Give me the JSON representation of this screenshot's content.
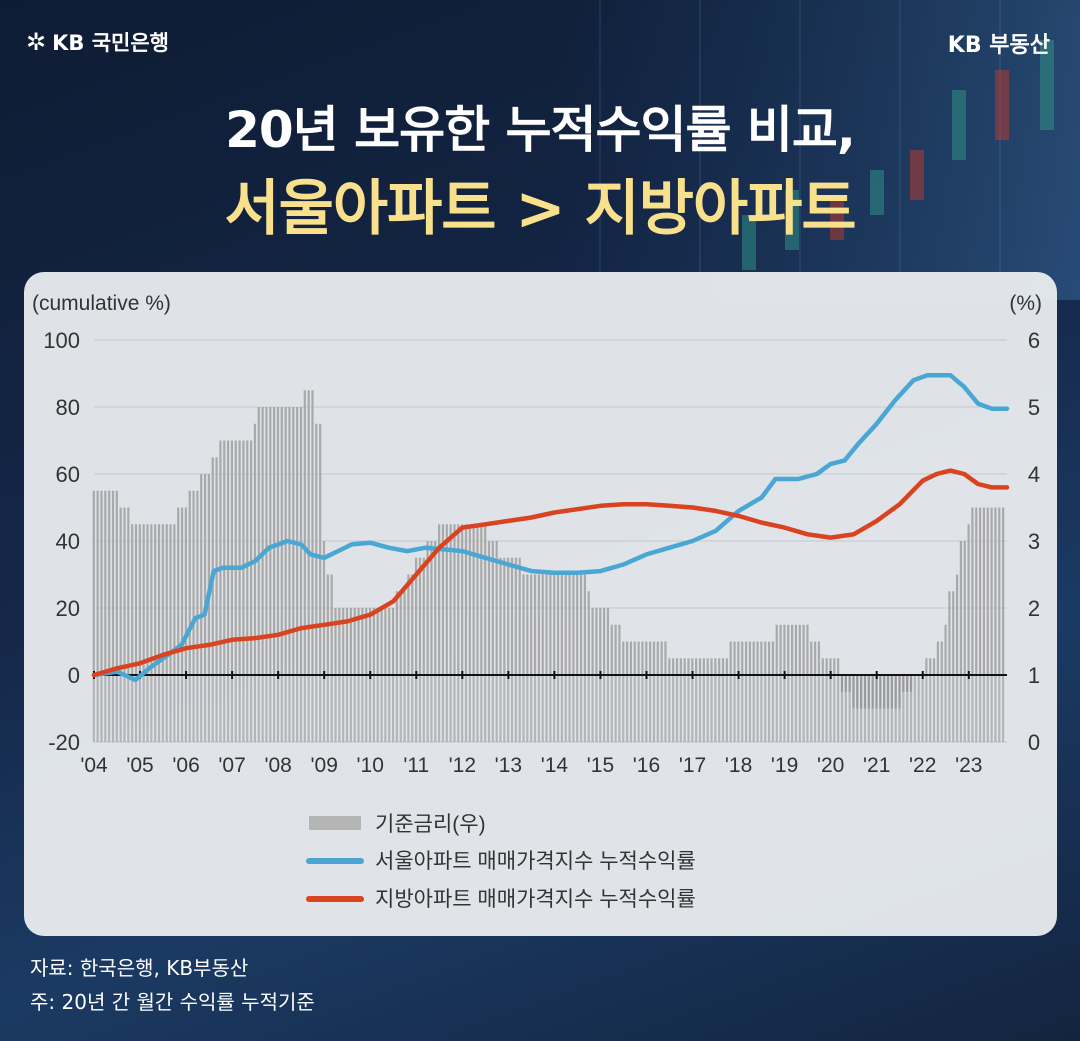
{
  "header": {
    "brand_left": "KB 국민은행",
    "brand_left_icon": "kb-star-icon",
    "brand_right": "KB 부동산",
    "title_line1": "20년 보유한 누적수익률 비교,",
    "title_line2": "서울아파트 > 지방아파트",
    "accent_color": "#f9e08c"
  },
  "footer": {
    "source": "자료: 한국은행, KB부동산",
    "note": "주: 20년 간 월간 수익률 누적기준"
  },
  "chart_data": {
    "type": "line",
    "left_axis_unit": "(cumulative %)",
    "right_axis_unit": "(%)",
    "y_left_ticks": [
      "100",
      "80",
      "60",
      "40",
      "20",
      "0",
      "-20"
    ],
    "y_right_ticks": [
      "6",
      "5",
      "4",
      "3",
      "2",
      "1",
      "0"
    ],
    "ylim_left": [
      -20,
      100
    ],
    "ylim_right": [
      0,
      6
    ],
    "x_labels": [
      "'04",
      "'05",
      "'06",
      "'07",
      "'08",
      "'09",
      "'10",
      "'11",
      "'12",
      "'13",
      "'14",
      "'15",
      "'16",
      "'17",
      "'18",
      "'19",
      "'20",
      "'21",
      "'22",
      "'23"
    ],
    "x_range": [
      2004.0,
      2023.83
    ],
    "grid": true,
    "legend_position": "bottom",
    "bar_series": {
      "name": "기준금리(우)",
      "axis": "right",
      "color": "#a9a9a9",
      "steps": [
        [
          2004.0,
          3.75
        ],
        [
          2004.58,
          3.5
        ],
        [
          2004.83,
          3.25
        ],
        [
          2005.83,
          3.5
        ],
        [
          2006.08,
          3.75
        ],
        [
          2006.33,
          4.0
        ],
        [
          2006.58,
          4.25
        ],
        [
          2006.75,
          4.5
        ],
        [
          2007.5,
          4.75
        ],
        [
          2007.58,
          5.0
        ],
        [
          2008.58,
          5.25
        ],
        [
          2008.83,
          4.75
        ],
        [
          2008.92,
          4.0
        ],
        [
          2009.0,
          3.0
        ],
        [
          2009.08,
          2.5
        ],
        [
          2009.17,
          2.0
        ],
        [
          2010.58,
          2.25
        ],
        [
          2010.83,
          2.5
        ],
        [
          2011.0,
          2.75
        ],
        [
          2011.17,
          3.0
        ],
        [
          2011.42,
          3.25
        ],
        [
          2012.58,
          3.0
        ],
        [
          2012.83,
          2.75
        ],
        [
          2013.33,
          2.5
        ],
        [
          2014.67,
          2.25
        ],
        [
          2014.83,
          2.0
        ],
        [
          2015.25,
          1.75
        ],
        [
          2015.5,
          1.5
        ],
        [
          2016.5,
          1.25
        ],
        [
          2017.83,
          1.5
        ],
        [
          2018.83,
          1.75
        ],
        [
          2019.58,
          1.5
        ],
        [
          2019.83,
          1.25
        ],
        [
          2020.17,
          0.75
        ],
        [
          2020.42,
          0.5
        ],
        [
          2021.58,
          0.75
        ],
        [
          2021.83,
          1.0
        ],
        [
          2022.08,
          1.25
        ],
        [
          2022.33,
          1.5
        ],
        [
          2022.5,
          1.75
        ],
        [
          2022.58,
          2.25
        ],
        [
          2022.75,
          2.5
        ],
        [
          2022.83,
          3.0
        ],
        [
          2023.0,
          3.25
        ],
        [
          2023.08,
          3.5
        ],
        [
          2023.83,
          3.5
        ]
      ]
    },
    "series": [
      {
        "name": "서울아파트 매매가격지수 누적수익률",
        "axis": "left",
        "color": "#4aa7d3",
        "points": [
          [
            2004.0,
            0
          ],
          [
            2004.5,
            1
          ],
          [
            2004.9,
            -1.5
          ],
          [
            2005.2,
            2
          ],
          [
            2005.5,
            5
          ],
          [
            2005.9,
            9
          ],
          [
            2006.2,
            17
          ],
          [
            2006.4,
            18
          ],
          [
            2006.6,
            31
          ],
          [
            2006.8,
            32
          ],
          [
            2007.2,
            32
          ],
          [
            2007.5,
            34
          ],
          [
            2007.8,
            38
          ],
          [
            2008.2,
            40
          ],
          [
            2008.5,
            39
          ],
          [
            2008.7,
            36
          ],
          [
            2009.0,
            35
          ],
          [
            2009.3,
            37
          ],
          [
            2009.6,
            39
          ],
          [
            2010.0,
            39.5
          ],
          [
            2010.4,
            38
          ],
          [
            2010.8,
            37
          ],
          [
            2011.2,
            38
          ],
          [
            2011.6,
            37.5
          ],
          [
            2012.0,
            37
          ],
          [
            2012.5,
            35
          ],
          [
            2013.0,
            33
          ],
          [
            2013.5,
            31
          ],
          [
            2014.0,
            30.5
          ],
          [
            2014.5,
            30.5
          ],
          [
            2015.0,
            31
          ],
          [
            2015.5,
            33
          ],
          [
            2016.0,
            36
          ],
          [
            2016.5,
            38
          ],
          [
            2017.0,
            40
          ],
          [
            2017.5,
            43
          ],
          [
            2018.0,
            49
          ],
          [
            2018.5,
            53
          ],
          [
            2018.8,
            58.5
          ],
          [
            2019.3,
            58.5
          ],
          [
            2019.7,
            60
          ],
          [
            2020.0,
            63
          ],
          [
            2020.3,
            64
          ],
          [
            2020.6,
            69
          ],
          [
            2021.0,
            75
          ],
          [
            2021.4,
            82
          ],
          [
            2021.8,
            88
          ],
          [
            2022.1,
            89.5
          ],
          [
            2022.6,
            89.5
          ],
          [
            2022.9,
            86
          ],
          [
            2023.2,
            81
          ],
          [
            2023.5,
            79.5
          ],
          [
            2023.83,
            79.5
          ]
        ]
      },
      {
        "name": "지방아파트 매매가격지수 누적수익률",
        "axis": "left",
        "color": "#d9431f",
        "points": [
          [
            2004.0,
            0
          ],
          [
            2004.5,
            2
          ],
          [
            2005.0,
            3.5
          ],
          [
            2005.5,
            6
          ],
          [
            2006.0,
            8
          ],
          [
            2006.5,
            9
          ],
          [
            2007.0,
            10.5
          ],
          [
            2007.5,
            11
          ],
          [
            2008.0,
            12
          ],
          [
            2008.5,
            14
          ],
          [
            2009.0,
            15
          ],
          [
            2009.5,
            16
          ],
          [
            2010.0,
            18
          ],
          [
            2010.5,
            22
          ],
          [
            2011.0,
            30
          ],
          [
            2011.5,
            38
          ],
          [
            2012.0,
            44
          ],
          [
            2012.5,
            45
          ],
          [
            2013.0,
            46
          ],
          [
            2013.5,
            47
          ],
          [
            2014.0,
            48.5
          ],
          [
            2014.5,
            49.5
          ],
          [
            2015.0,
            50.5
          ],
          [
            2015.5,
            51
          ],
          [
            2016.0,
            51
          ],
          [
            2016.5,
            50.5
          ],
          [
            2017.0,
            50
          ],
          [
            2017.5,
            49
          ],
          [
            2018.0,
            47.5
          ],
          [
            2018.5,
            45.5
          ],
          [
            2019.0,
            44
          ],
          [
            2019.5,
            42
          ],
          [
            2020.0,
            41
          ],
          [
            2020.5,
            42
          ],
          [
            2021.0,
            46
          ],
          [
            2021.5,
            51
          ],
          [
            2022.0,
            58
          ],
          [
            2022.3,
            60
          ],
          [
            2022.6,
            61
          ],
          [
            2022.9,
            60
          ],
          [
            2023.2,
            57
          ],
          [
            2023.5,
            56
          ],
          [
            2023.83,
            56
          ]
        ]
      }
    ]
  }
}
